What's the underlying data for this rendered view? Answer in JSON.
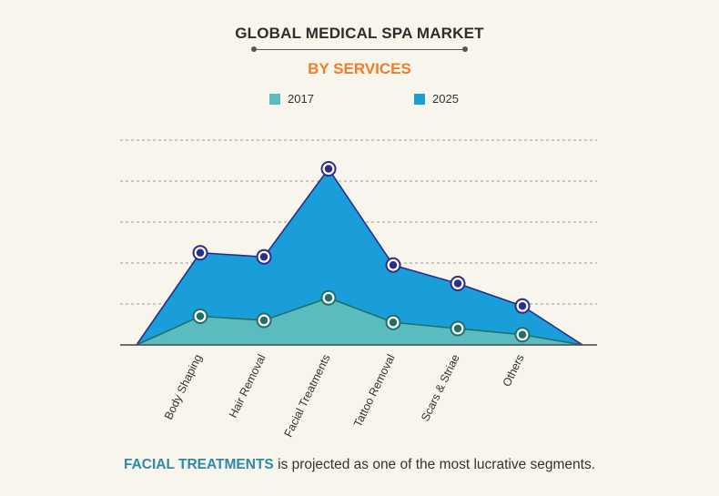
{
  "title": "GLOBAL MEDICAL SPA MARKET",
  "subtitle": "BY SERVICES",
  "footer": {
    "highlight": "FACIAL TREATMENTS",
    "text": " is projected as one of the most lucrative segments."
  },
  "colors": {
    "series_2017": "#5bbcbf",
    "series_2025": "#1a9ed9",
    "line_2017": "#1f6f6a",
    "line_2025": "#2b2d8c",
    "grid": "#9a9a9a"
  },
  "chart_data": {
    "type": "area",
    "categories": [
      "Body Shaping",
      "Hair Removal",
      "Facial Treatments",
      "Tattoo Removal",
      "Scars & Striae",
      "Others"
    ],
    "series": [
      {
        "name": "2017",
        "values": [
          0.7,
          0.6,
          1.15,
          0.55,
          0.4,
          0.25
        ]
      },
      {
        "name": "2025",
        "values": [
          2.25,
          2.15,
          4.3,
          1.95,
          1.5,
          0.95
        ]
      }
    ],
    "ylim": [
      0,
      5
    ],
    "grid": true,
    "legend": "top",
    "axis_ticks_shown": false
  }
}
